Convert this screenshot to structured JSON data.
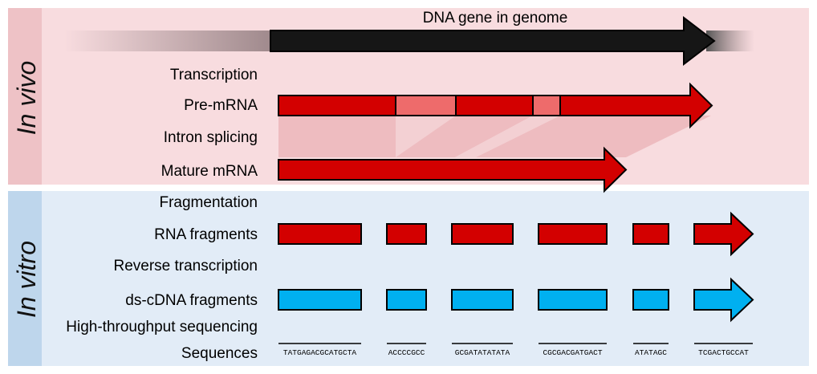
{
  "sections": {
    "in_vivo": {
      "label": "In vivo"
    },
    "in_vitro": {
      "label": "In vitro"
    }
  },
  "title": "DNA gene in genome",
  "steps": {
    "transcription": "Transcription",
    "pre_mrna": "Pre-mRNA",
    "intron_splicing": "Intron splicing",
    "mature_mrna": "Mature mRNA",
    "fragmentation": "Fragmentation",
    "rna_fragments": "RNA fragments",
    "reverse_transcription": "Reverse transcription",
    "ds_cdna_fragments": "ds-cDNA fragments",
    "high_throughput_sequencing": "High-throughput sequencing",
    "sequences": "Sequences"
  },
  "sequence_reads": [
    "TATGAGACGCATGCTA",
    "ACCCCGCC",
    "GCGATATATATA",
    "CGCGACGATGACT",
    "ATATAGC",
    "TCGACTGCCAT"
  ],
  "colors": {
    "in_vivo_bg": "#f8dcdf",
    "in_vivo_sidebar": "#eec2c6",
    "in_vitro_bg": "#e2ecf7",
    "in_vitro_sidebar": "#bed6ec",
    "dna": "#161616",
    "exon": "#d30000",
    "intron": "#ee6b6b",
    "cdna": "#00b0f0"
  }
}
